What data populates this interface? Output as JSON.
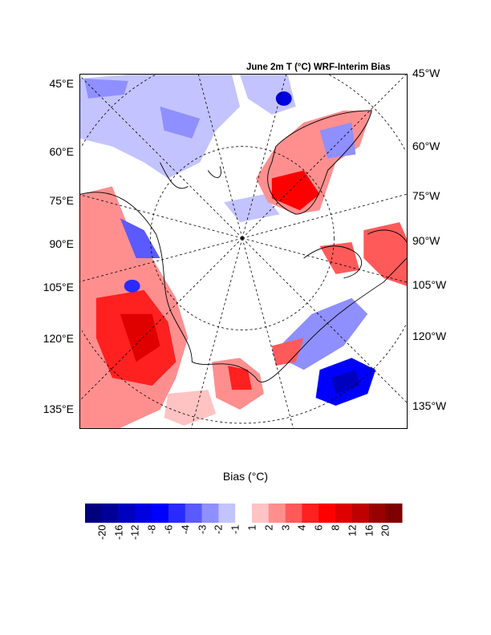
{
  "title": "June 2m T (°C) WRF-Interim Bias",
  "left_labels": [
    "45°E",
    "60°E",
    "75°E",
    "90°E",
    "105°E",
    "120°E",
    "135°E"
  ],
  "right_labels": [
    "45°W",
    "60°W",
    "75°W",
    "90°W",
    "105°W",
    "120°W",
    "135°W"
  ],
  "colorbar": {
    "title": "Bias (°C)",
    "labels": [
      "-20",
      "-16",
      "-12",
      "-8",
      "-6",
      "-4",
      "-3",
      "-2",
      "-1",
      "1",
      "2",
      "3",
      "4",
      "6",
      "8",
      "12",
      "16",
      "20"
    ],
    "colors": [
      "#00007f",
      "#000099",
      "#0000bf",
      "#0000e0",
      "#0000ff",
      "#2a2aff",
      "#5a5aff",
      "#8f8fff",
      "#c3c3ff",
      "#ffffff",
      "#ffc3c3",
      "#ff8f8f",
      "#ff5a5a",
      "#ff2020",
      "#ff0000",
      "#df0000",
      "#bf0000",
      "#990000",
      "#7f0000"
    ]
  }
}
